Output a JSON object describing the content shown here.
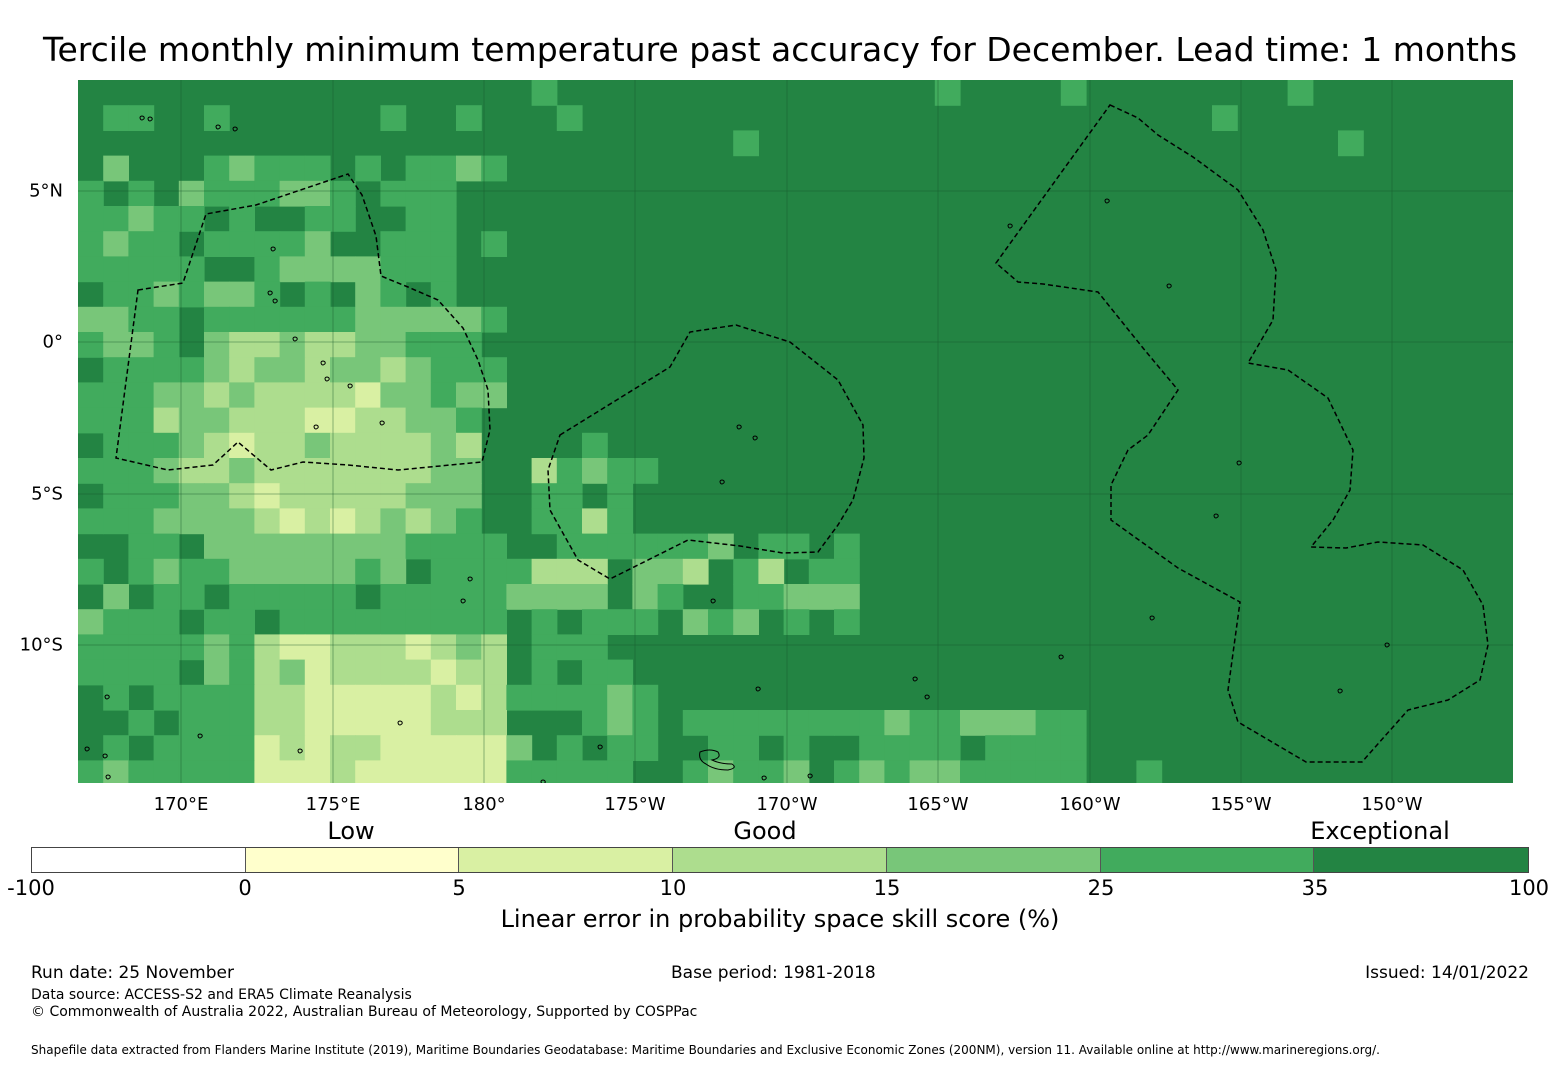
{
  "title": "Tercile monthly minimum temperature past accuracy for December. Lead time: 1 months",
  "map": {
    "lat_labels": [
      "5°N",
      "0°",
      "5°S",
      "10°S"
    ],
    "lon_labels": [
      "170°E",
      "175°E",
      "180°",
      "175°W",
      "170°W",
      "165°W",
      "160°W",
      "155°W",
      "150°W"
    ],
    "extent": {
      "lon_min": 166.6,
      "lon_max": 213.9,
      "lat_min": -14.5,
      "lat_max": 8.7
    },
    "colors": {
      "c0": "#ffffff",
      "c1": "#ffffcc",
      "c2": "#d9f0a3",
      "c3": "#addd8e",
      "c4": "#78c679",
      "c5": "#41ab5d",
      "c6": "#238443",
      "gridline": "#1a5a2b",
      "eez_line": "#000000",
      "coast": "#000000"
    }
  },
  "legend": {
    "category_labels": [
      "Low",
      "Good",
      "Exceptional"
    ],
    "ticks": [
      "-100",
      "0",
      "5",
      "10",
      "15",
      "25",
      "35",
      "100"
    ],
    "colors": [
      "#ffffff",
      "#ffffcc",
      "#d9f0a3",
      "#addd8e",
      "#78c679",
      "#41ab5d",
      "#238443"
    ],
    "title": "Linear error in probability space skill score (%)"
  },
  "footer": {
    "run_date": "Run date: 25 November",
    "base_period": "Base period: 1981-2018",
    "issued": "Issued: 14/01/2022",
    "data_source": "Data source: ACCESS-S2 and ERA5 Climate Reanalysis",
    "copyright": "© Commonwealth of Australia 2022, Australian Bureau of Meteorology, Supported by COSPPac",
    "shapefile_note": "Shapefile data extracted from Flanders Marine Institute (2019), Maritime Boundaries Geodatabase: Maritime Boundaries and Exclusive Economic Zones (200NM), version 11. Available online at http://www.marineregions.org/."
  }
}
